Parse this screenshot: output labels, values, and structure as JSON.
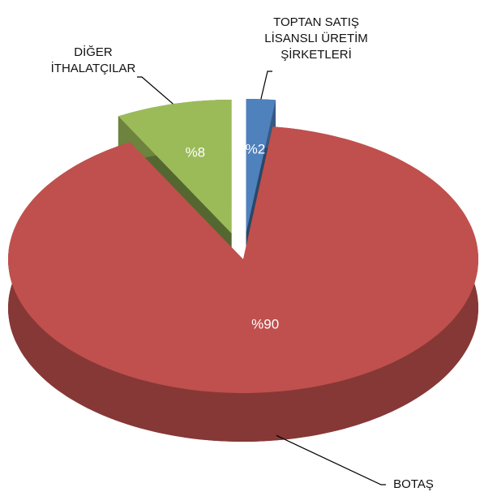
{
  "chart_data": {
    "type": "pie",
    "categories": [
      "TOPTAN SATIŞ\nLİSANSLI ÜRETİM\nŞİRKETLERİ",
      "BOTAŞ",
      "DİĞER\nİTHALATÇILAR"
    ],
    "values": [
      2,
      90,
      8
    ],
    "value_labels": [
      "%2",
      "%90",
      "%8"
    ],
    "colors": [
      "#4f81bd",
      "#c0504d",
      "#9bbb59"
    ]
  }
}
